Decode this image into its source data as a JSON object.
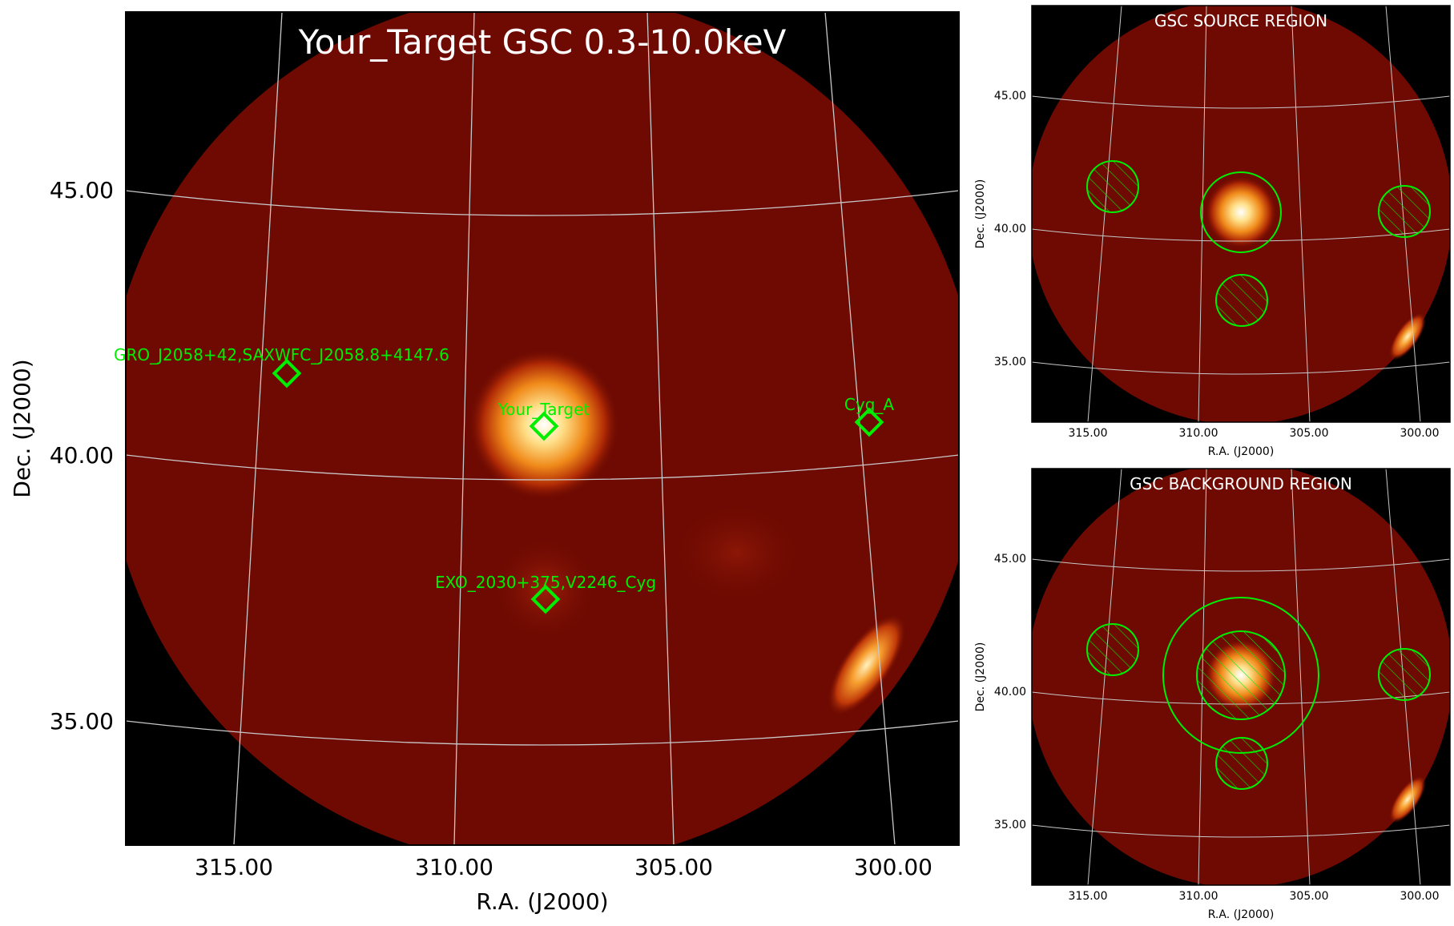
{
  "main_panel": {
    "title": "Your_Target GSC 0.3-10.0keV",
    "xlabel": "R.A. (J2000)",
    "ylabel": "Dec. (J2000)",
    "ra_ticks": [
      "315.00",
      "310.00",
      "305.00",
      "300.00"
    ],
    "dec_ticks": [
      "45.00",
      "40.00",
      "35.00"
    ],
    "sources": [
      {
        "label": "GRO_J2058+42,SAXWFC_J2058.8+4147.6"
      },
      {
        "label": "Your_Target"
      },
      {
        "label": "Cyg_A"
      },
      {
        "label": "EXO_2030+375,V2246_Cyg"
      }
    ]
  },
  "source_panel": {
    "title": "GSC SOURCE REGION",
    "xlabel": "R.A. (J2000)",
    "ylabel": "Dec. (J2000)",
    "ra_ticks": [
      "315.00",
      "310.00",
      "305.00",
      "300.00"
    ],
    "dec_ticks": [
      "45.00",
      "40.00",
      "35.00"
    ]
  },
  "background_panel": {
    "title": "GSC BACKGROUND REGION",
    "xlabel": "R.A. (J2000)",
    "ylabel": "Dec. (J2000)",
    "ra_ticks": [
      "315.00",
      "310.00",
      "305.00",
      "300.00"
    ],
    "dec_ticks": [
      "45.00",
      "40.00",
      "35.00"
    ]
  },
  "colors": {
    "marker": "#00ee00",
    "grid": "#c8c8c8",
    "background": "#000000",
    "field": "#6e0a02"
  }
}
